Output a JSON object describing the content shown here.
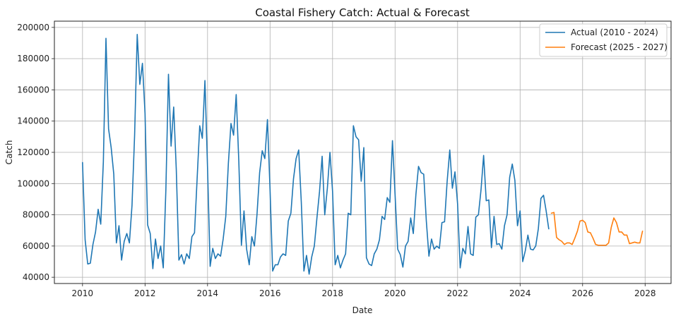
{
  "chart_data": {
    "type": "line",
    "title": "Coastal Fishery Catch: Actual & Forecast",
    "xlabel": "Date",
    "ylabel": "Catch",
    "xlim": [
      2009.1,
      2028.83
    ],
    "ylim": [
      36000,
      204000
    ],
    "x_ticks": [
      2010,
      2012,
      2014,
      2016,
      2018,
      2020,
      2022,
      2024,
      2026,
      2028
    ],
    "x_tick_labels": [
      "2010",
      "2012",
      "2014",
      "2016",
      "2018",
      "2020",
      "2022",
      "2024",
      "2026",
      "2028"
    ],
    "y_ticks": [
      40000,
      60000,
      80000,
      100000,
      120000,
      140000,
      160000,
      180000,
      200000
    ],
    "y_tick_labels": [
      "40000",
      "60000",
      "80000",
      "100000",
      "120000",
      "140000",
      "160000",
      "180000",
      "200000"
    ],
    "grid": true,
    "legend_position": "top-right",
    "series": [
      {
        "name": "Actual (2010 - 2024)",
        "color": "#1f77b4",
        "start": 2010,
        "step": 0.083333,
        "values": [
          113500,
          64000,
          48500,
          49000,
          61000,
          69000,
          83500,
          74000,
          114000,
          193000,
          135000,
          123000,
          106000,
          62000,
          73000,
          51000,
          63000,
          68000,
          62000,
          86000,
          131000,
          195500,
          163500,
          177000,
          145000,
          73500,
          68000,
          45500,
          64500,
          52000,
          60000,
          46000,
          96000,
          170000,
          124000,
          149000,
          109000,
          51000,
          54500,
          48500,
          55000,
          52000,
          66000,
          68500,
          103000,
          137000,
          129000,
          166000,
          110000,
          47000,
          58500,
          52000,
          55000,
          53500,
          64500,
          79000,
          113000,
          138500,
          131000,
          157000,
          114500,
          60500,
          82500,
          58000,
          48000,
          66000,
          60000,
          80500,
          107000,
          121000,
          116000,
          141000,
          96000,
          44000,
          48000,
          48000,
          53000,
          55000,
          54000,
          76000,
          81000,
          103000,
          116000,
          121500,
          88000,
          44000,
          54000,
          42000,
          53000,
          60000,
          78000,
          95000,
          117500,
          80000,
          97000,
          120000,
          95000,
          48000,
          54000,
          46000,
          51000,
          55000,
          81000,
          80000,
          137000,
          130000,
          128000,
          101500,
          123000,
          52500,
          48500,
          47500,
          55000,
          58000,
          64000,
          79000,
          77000,
          91000,
          88000,
          127500,
          93000,
          58000,
          54500,
          46500,
          60000,
          63000,
          78000,
          68000,
          93000,
          111000,
          107000,
          106000,
          76000,
          53500,
          64500,
          58000,
          60000,
          58500,
          75000,
          75500,
          101500,
          121500,
          97000,
          107500,
          87000,
          46000,
          58500,
          55000,
          72500,
          55000,
          54000,
          78500,
          80000,
          96000,
          118000,
          89000,
          89500,
          59000,
          79000,
          61000,
          61500,
          58000,
          73000,
          80000,
          104000,
          112500,
          102000,
          73000,
          82500,
          50000,
          57000,
          67000,
          58000,
          57500,
          60000,
          71000,
          90500,
          92500,
          82500,
          71000
        ]
      },
      {
        "name": "Forecast (2025 - 2027)",
        "color": "#ff7f0e",
        "start": 2025,
        "step": 0.083333,
        "values": [
          81000,
          81500,
          65500,
          64000,
          63000,
          61000,
          62000,
          62000,
          61000,
          65000,
          69500,
          76000,
          76500,
          75000,
          69000,
          68500,
          65000,
          61000,
          60500,
          60500,
          60500,
          60500,
          62000,
          72000,
          78000,
          75000,
          69000,
          69000,
          67000,
          67000,
          61500,
          62000,
          62500,
          62000,
          62000,
          69500
        ]
      }
    ]
  }
}
